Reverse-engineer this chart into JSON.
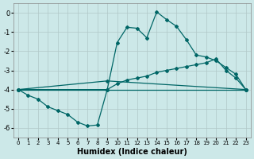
{
  "xlabel": "Humidex (Indice chaleur)",
  "bg_color": "#cce8e8",
  "grid_color": "#b0c8c8",
  "line_color": "#006666",
  "curve1_x": [
    0,
    1,
    2,
    3,
    4,
    5,
    6,
    7,
    8,
    9,
    10,
    11,
    12,
    13,
    14,
    15,
    16,
    17,
    18,
    19,
    20,
    21,
    22,
    23
  ],
  "curve1_y": [
    -4.0,
    -4.3,
    -4.5,
    -4.9,
    -5.1,
    -5.3,
    -5.7,
    -5.9,
    -5.85,
    -4.0,
    -3.7,
    -3.5,
    -3.4,
    -3.3,
    -3.1,
    -3.0,
    -2.9,
    -2.8,
    -2.7,
    -2.6,
    -2.4,
    -3.0,
    -3.4,
    -4.0
  ],
  "curve2_x": [
    0,
    9,
    10,
    11,
    12,
    13,
    14,
    15,
    16,
    17,
    18,
    19,
    20,
    21,
    22,
    23
  ],
  "curve2_y": [
    -4.0,
    -4.0,
    -1.55,
    -0.75,
    -0.8,
    -1.3,
    0.05,
    -0.35,
    -0.7,
    -1.4,
    -2.2,
    -2.3,
    -2.5,
    -2.85,
    -3.2,
    -4.0
  ],
  "curve3_x": [
    0,
    9,
    23
  ],
  "curve3_y": [
    -4.0,
    -3.55,
    -4.0
  ],
  "curve4_x": [
    0,
    23
  ],
  "curve4_y": [
    -4.0,
    -4.0
  ],
  "yticks": [
    0,
    -1,
    -2,
    -3,
    -4,
    -5,
    -6
  ],
  "xticks": [
    0,
    1,
    2,
    3,
    4,
    5,
    6,
    7,
    8,
    9,
    10,
    11,
    12,
    13,
    14,
    15,
    16,
    17,
    18,
    19,
    20,
    21,
    22,
    23
  ],
  "xlim": [
    -0.5,
    23.5
  ],
  "ylim": [
    -6.5,
    0.5
  ]
}
